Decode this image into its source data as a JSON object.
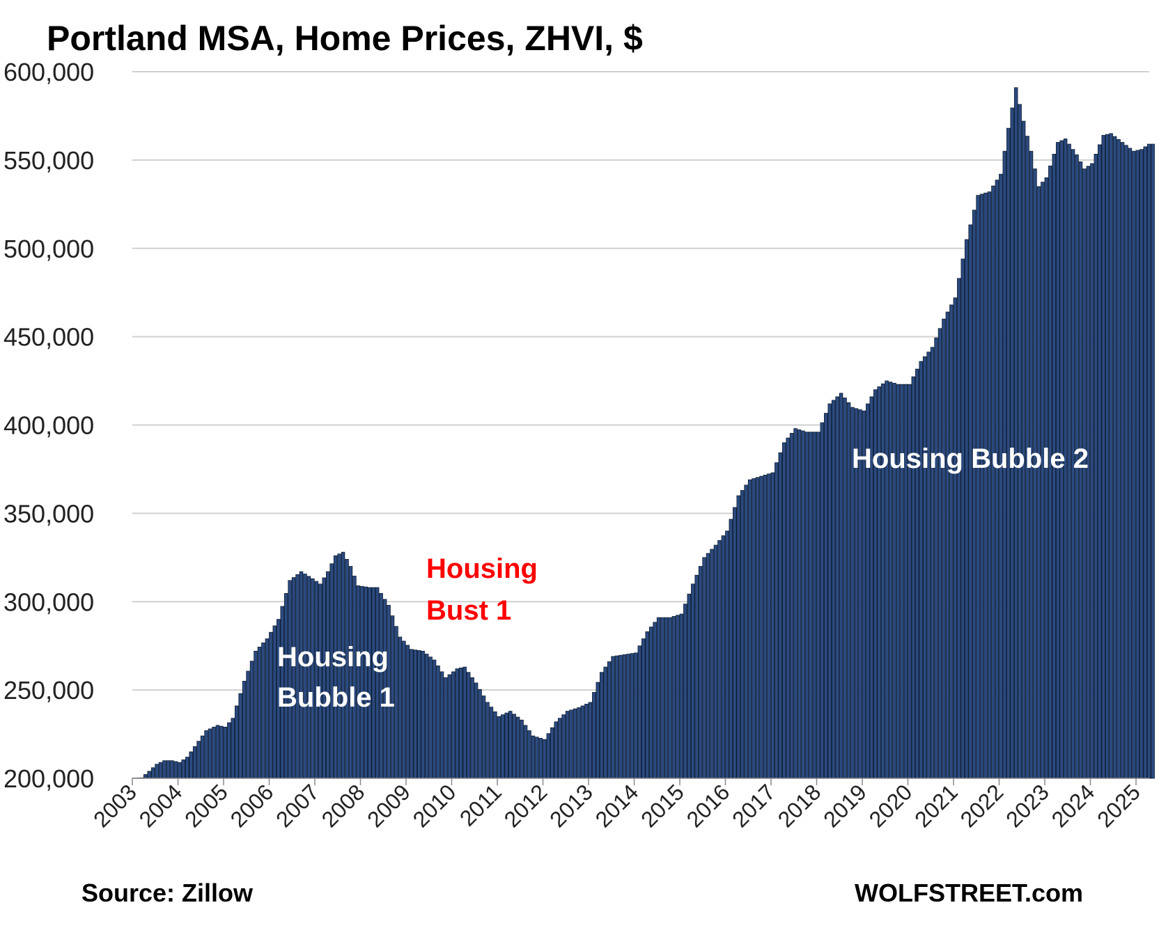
{
  "title": "Portland  MSA, Home Prices, ZHVI, $",
  "source": "Source: Zillow",
  "brand": "WOLFSTREET.com",
  "colors": {
    "bar": "#2b4a7f",
    "bar_edge": "#0e1d33",
    "grid": "#d0d0d0",
    "bust": "#ff0000",
    "bubble": "#ffffff"
  },
  "annotations": {
    "bubble1_line1": "Housing",
    "bubble1_line2": "Bubble 1",
    "bust1_line1": "Housing",
    "bust1_line2": "Bust 1",
    "bubble2": "Housing Bubble 2"
  },
  "chart_data": {
    "type": "bar",
    "title": "Portland  MSA, Home Prices, ZHVI, $",
    "xlabel": "",
    "ylabel": "",
    "ylim": [
      200000,
      600000
    ],
    "yticks": [
      "200,000",
      "250,000",
      "300,000",
      "350,000",
      "400,000",
      "450,000",
      "500,000",
      "550,000",
      "600,000"
    ],
    "xticks": [
      "2003",
      "2004",
      "2005",
      "2006",
      "2007",
      "2008",
      "2009",
      "2010",
      "2011",
      "2012",
      "2013",
      "2014",
      "2015",
      "2016",
      "2017",
      "2018",
      "2019",
      "2020",
      "2021",
      "2022",
      "2023",
      "2024",
      "2025"
    ],
    "grid": true,
    "legend": "none",
    "frequency": "monthly",
    "start": "2003-01",
    "end": "2025-05",
    "anchors": [
      [
        "2003-01",
        200200
      ],
      [
        "2003-03",
        200300
      ],
      [
        "2003-05",
        204000
      ],
      [
        "2003-07",
        208000
      ],
      [
        "2003-09",
        210000
      ],
      [
        "2003-11",
        210000
      ],
      [
        "2004-01",
        209000
      ],
      [
        "2004-03",
        212000
      ],
      [
        "2004-05",
        218000
      ],
      [
        "2004-08",
        227000
      ],
      [
        "2004-11",
        230000
      ],
      [
        "2005-01",
        229000
      ],
      [
        "2005-03",
        234000
      ],
      [
        "2005-06",
        255000
      ],
      [
        "2005-09",
        272000
      ],
      [
        "2005-12",
        279000
      ],
      [
        "2006-03",
        290000
      ],
      [
        "2006-06",
        312000
      ],
      [
        "2006-09",
        317000
      ],
      [
        "2006-12",
        313000
      ],
      [
        "2007-02",
        310000
      ],
      [
        "2007-04",
        317000
      ],
      [
        "2007-06",
        326000
      ],
      [
        "2007-08",
        328000
      ],
      [
        "2007-10",
        320000
      ],
      [
        "2007-12",
        309000
      ],
      [
        "2008-03",
        308000
      ],
      [
        "2008-05",
        308000
      ],
      [
        "2008-08",
        298000
      ],
      [
        "2008-11",
        280000
      ],
      [
        "2009-02",
        273000
      ],
      [
        "2009-05",
        272000
      ],
      [
        "2009-08",
        267000
      ],
      [
        "2009-11",
        257000
      ],
      [
        "2010-02",
        262000
      ],
      [
        "2010-04",
        263000
      ],
      [
        "2010-07",
        254000
      ],
      [
        "2010-10",
        243000
      ],
      [
        "2011-01",
        235000
      ],
      [
        "2011-04",
        238000
      ],
      [
        "2011-07",
        233000
      ],
      [
        "2011-10",
        224000
      ],
      [
        "2012-01",
        222000
      ],
      [
        "2012-04",
        232000
      ],
      [
        "2012-07",
        238000
      ],
      [
        "2012-10",
        240000
      ],
      [
        "2013-01",
        243000
      ],
      [
        "2013-04",
        260000
      ],
      [
        "2013-07",
        269000
      ],
      [
        "2013-10",
        270000
      ],
      [
        "2014-01",
        271000
      ],
      [
        "2014-04",
        283000
      ],
      [
        "2014-07",
        291000
      ],
      [
        "2014-10",
        291000
      ],
      [
        "2015-01",
        293000
      ],
      [
        "2015-04",
        310000
      ],
      [
        "2015-07",
        325000
      ],
      [
        "2015-10",
        332000
      ],
      [
        "2016-01",
        340000
      ],
      [
        "2016-04",
        360000
      ],
      [
        "2016-07",
        369000
      ],
      [
        "2016-10",
        371000
      ],
      [
        "2017-01",
        373000
      ],
      [
        "2017-04",
        390000
      ],
      [
        "2017-07",
        398000
      ],
      [
        "2017-10",
        396000
      ],
      [
        "2018-01",
        396000
      ],
      [
        "2018-04",
        412000
      ],
      [
        "2018-07",
        418000
      ],
      [
        "2018-10",
        410000
      ],
      [
        "2019-01",
        408000
      ],
      [
        "2019-04",
        420000
      ],
      [
        "2019-07",
        425000
      ],
      [
        "2019-10",
        423000
      ],
      [
        "2020-01",
        423000
      ],
      [
        "2020-04",
        436000
      ],
      [
        "2020-07",
        444000
      ],
      [
        "2020-10",
        460000
      ],
      [
        "2021-01",
        472000
      ],
      [
        "2021-04",
        505000
      ],
      [
        "2021-07",
        530000
      ],
      [
        "2021-10",
        532000
      ],
      [
        "2022-01",
        542000
      ],
      [
        "2022-03",
        568000
      ],
      [
        "2022-05",
        591000
      ],
      [
        "2022-07",
        572000
      ],
      [
        "2022-09",
        555000
      ],
      [
        "2022-11",
        535000
      ],
      [
        "2023-01",
        540000
      ],
      [
        "2023-04",
        560000
      ],
      [
        "2023-06",
        562000
      ],
      [
        "2023-09",
        553000
      ],
      [
        "2023-11",
        545000
      ],
      [
        "2024-01",
        548000
      ],
      [
        "2024-04",
        564000
      ],
      [
        "2024-06",
        565000
      ],
      [
        "2024-09",
        560000
      ],
      [
        "2024-12",
        555000
      ],
      [
        "2025-02",
        556000
      ],
      [
        "2025-04",
        559000
      ],
      [
        "2025-05",
        559000
      ]
    ]
  }
}
